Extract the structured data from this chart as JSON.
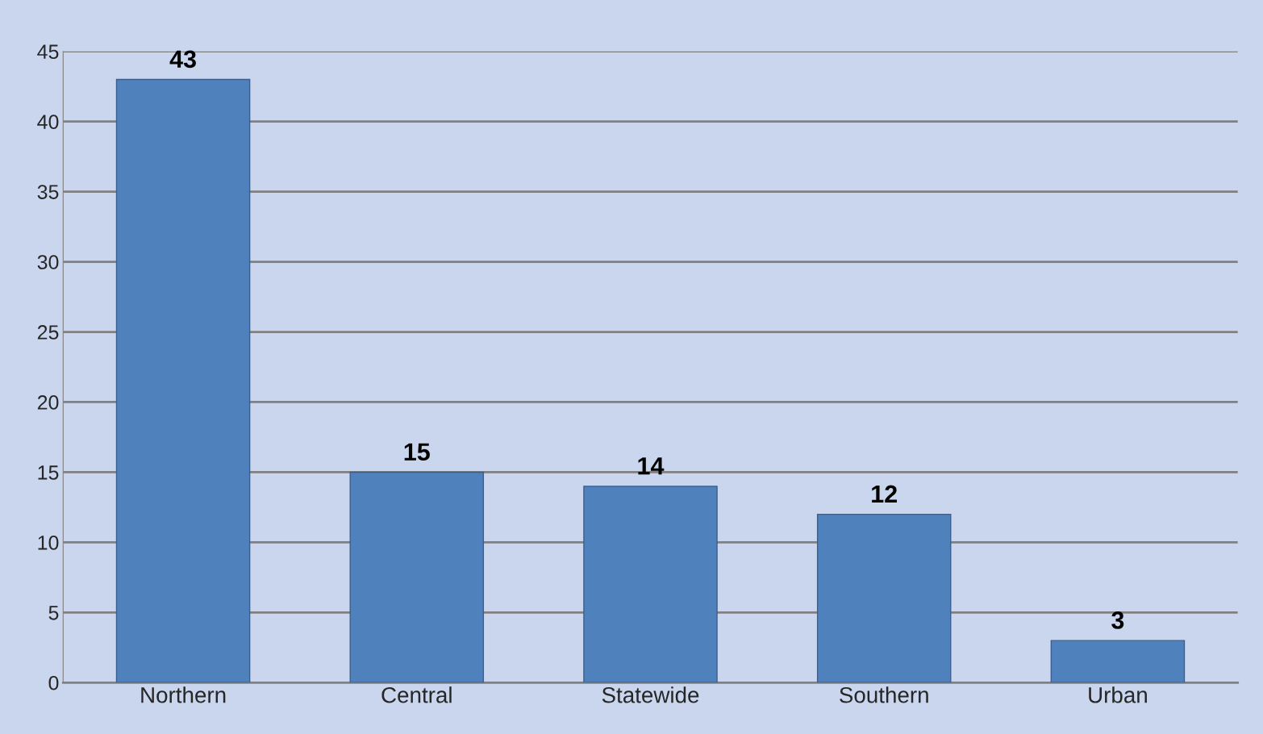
{
  "chart_data": {
    "type": "bar",
    "categories": [
      "Northern",
      "Central",
      "Statewide",
      "Southern",
      "Urban"
    ],
    "values": [
      43,
      15,
      14,
      12,
      3
    ],
    "color": "#4f81bd",
    "ylim": [
      0,
      45
    ],
    "yticks": [
      0,
      5,
      10,
      15,
      20,
      25,
      30,
      35,
      40,
      45
    ],
    "grid": "y",
    "data_labels": true
  }
}
